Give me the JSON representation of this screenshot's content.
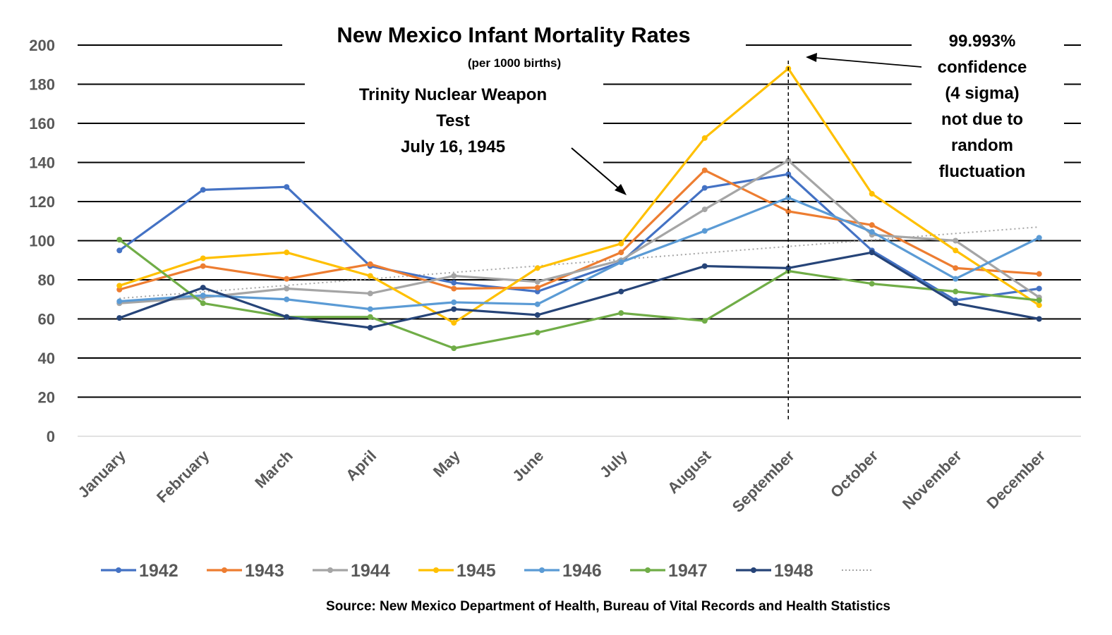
{
  "chart_data": {
    "type": "line",
    "title": "New Mexico Infant Mortality Rates",
    "subtitle": "(per 1000 births)",
    "xlabel": "",
    "ylabel": "",
    "ylim": [
      0,
      200
    ],
    "yticks": [
      0,
      20,
      40,
      60,
      80,
      100,
      120,
      140,
      160,
      180,
      200
    ],
    "grid": true,
    "legend_position": "bottom",
    "categories": [
      "January",
      "February",
      "March",
      "April",
      "May",
      "June",
      "July",
      "August",
      "September",
      "October",
      "November",
      "December"
    ],
    "series": [
      {
        "name": "1942",
        "color": "#4472C4",
        "values": [
          95,
          126,
          127.5,
          87,
          78.5,
          74,
          89,
          127,
          134,
          95,
          69.5,
          75.5
        ]
      },
      {
        "name": "1943",
        "color": "#ED7D31",
        "values": [
          75,
          87,
          80.5,
          88,
          75.5,
          76,
          94,
          136,
          115,
          108,
          86,
          83
        ]
      },
      {
        "name": "1944",
        "color": "#A5A5A5",
        "values": [
          68,
          71,
          75.5,
          73,
          82,
          79,
          90,
          116,
          141,
          103,
          100,
          71
        ]
      },
      {
        "name": "1945",
        "color": "#FFC000",
        "values": [
          77,
          91,
          94,
          82,
          58,
          86,
          98.5,
          152.5,
          188,
          124,
          95,
          67
        ]
      },
      {
        "name": "1946",
        "color": "#5B9BD5",
        "values": [
          69,
          72,
          70,
          65,
          68.5,
          67.5,
          89,
          105,
          122,
          104.5,
          80.5,
          101.5
        ]
      },
      {
        "name": "1947",
        "color": "#70AD47",
        "values": [
          100.5,
          68,
          61,
          61,
          45,
          53,
          63,
          59,
          84.5,
          78,
          74,
          69.5
        ]
      },
      {
        "name": "1948",
        "color": "#264478",
        "values": [
          60.5,
          76,
          61,
          55.5,
          65,
          62,
          74,
          87,
          86,
          94,
          68,
          60
        ]
      }
    ],
    "trendline": {
      "name": "",
      "style": "dotted",
      "color": "#A5A5A5",
      "values_start_end": [
        70.5,
        107
      ]
    },
    "annotations": [
      {
        "id": "trinity",
        "lines": [
          "Trinity Nuclear Weapon",
          "Test",
          "July 16, 1945"
        ],
        "points_to": "July"
      },
      {
        "id": "confidence",
        "lines": [
          "99.993%",
          "confidence",
          "(4 sigma)",
          "not due to",
          "random",
          "fluctuation"
        ],
        "points_to": "September"
      }
    ],
    "vertical_marker": {
      "at": "September",
      "style": "dashed"
    },
    "source": "Source: New Mexico Department of Health, Bureau of Vital Records and Health Statistics"
  }
}
